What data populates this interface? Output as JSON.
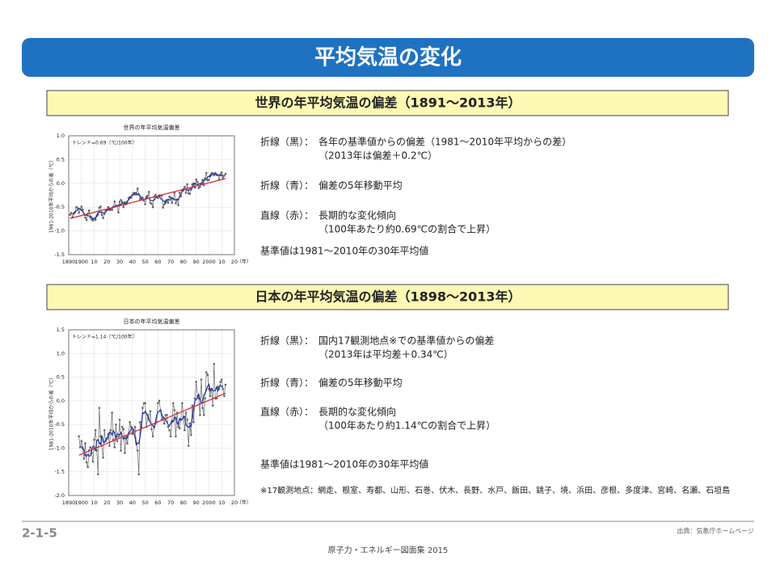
{
  "title": "平均気温の変化",
  "sections": [
    {
      "heading": "世界の年平均気温の偏差（1891～2013年）",
      "notes": [
        {
          "label": "折線（黒）：",
          "lines": [
            "各年の基準値からの偏差（1981～2010年平均からの差）",
            "（2013年は偏差＋0.2℃）"
          ]
        },
        {
          "label": "折線（青）：",
          "lines": [
            "偏差の5年移動平均"
          ]
        },
        {
          "label": "直線（赤）：",
          "lines": [
            "長期的な変化傾向",
            "（100年あたり約0.69℃の割合で上昇）"
          ]
        }
      ],
      "baseline": "基準値は1981～2010年の30年平均値"
    },
    {
      "heading": "日本の年平均気温の偏差（1898～2013年）",
      "notes": [
        {
          "label": "折線（黒）：",
          "lines": [
            "国内17観測地点※での基準値からの偏差",
            "（2013年は平均差＋0.34℃）"
          ]
        },
        {
          "label": "折線（青）：",
          "lines": [
            "偏差の5年移動平均"
          ]
        },
        {
          "label": "直線（赤）：",
          "lines": [
            "長期的な変化傾向",
            "（100年あたり約1.14℃の割合で上昇）"
          ]
        }
      ],
      "baseline": "基準値は1981～2010年の30年平均値",
      "stations": "※17観測地点：網走、根室、寿都、山形、石巻、伏木、長野、水戸、飯田、銚子、境、浜田、彦根、多度津、宮崎、名瀬、石垣島"
    }
  ],
  "chart_data": [
    {
      "type": "line",
      "title": "世界の年平均気温偏差",
      "ylabel": "1981-2010年平均からの差（℃）",
      "xlabel": "（年）",
      "annotation": "トレンド=0.69（℃/100年）",
      "grid": true,
      "xlim": [
        1890,
        2020
      ],
      "xticks": [
        1890,
        1900,
        {
          "value": 1910,
          "label": "10"
        },
        {
          "value": 1920,
          "label": "20"
        },
        {
          "value": 1930,
          "label": "30"
        },
        {
          "value": 1940,
          "label": "40"
        },
        {
          "value": 1950,
          "label": "50"
        },
        {
          "value": 1960,
          "label": "60"
        },
        {
          "value": 1970,
          "label": "70"
        },
        {
          "value": 1980,
          "label": "80"
        },
        {
          "value": 1990,
          "label": "90"
        },
        2000,
        {
          "value": 2010,
          "label": "10"
        },
        {
          "value": 2020,
          "label": "20"
        }
      ],
      "ylim": [
        -1.5,
        1.0
      ],
      "yticks": [
        -1.5,
        {
          "value": -1.0,
          "label": "-1.0"
        },
        -0.5,
        {
          "value": 0,
          "label": "0.0"
        },
        0.5,
        {
          "value": 1.0,
          "label": "1.0"
        }
      ],
      "x": [
        1891,
        1892,
        1893,
        1894,
        1895,
        1896,
        1897,
        1898,
        1899,
        1900,
        1901,
        1902,
        1903,
        1904,
        1905,
        1906,
        1907,
        1908,
        1909,
        1910,
        1911,
        1912,
        1913,
        1914,
        1915,
        1916,
        1917,
        1918,
        1919,
        1920,
        1921,
        1922,
        1923,
        1924,
        1925,
        1926,
        1927,
        1928,
        1929,
        1930,
        1931,
        1932,
        1933,
        1934,
        1935,
        1936,
        1937,
        1938,
        1939,
        1940,
        1941,
        1942,
        1943,
        1944,
        1945,
        1946,
        1947,
        1948,
        1949,
        1950,
        1951,
        1952,
        1953,
        1954,
        1955,
        1956,
        1957,
        1958,
        1959,
        1960,
        1961,
        1962,
        1963,
        1964,
        1965,
        1966,
        1967,
        1968,
        1969,
        1970,
        1971,
        1972,
        1973,
        1974,
        1975,
        1976,
        1977,
        1978,
        1979,
        1980,
        1981,
        1982,
        1983,
        1984,
        1985,
        1986,
        1987,
        1988,
        1989,
        1990,
        1991,
        1992,
        1993,
        1994,
        1995,
        1996,
        1997,
        1998,
        1999,
        2000,
        2001,
        2002,
        2003,
        2004,
        2005,
        2006,
        2007,
        2008,
        2009,
        2010,
        2011,
        2012,
        2013
      ],
      "series": [
        {
          "color": "#666666",
          "markers": true,
          "values": [
            -0.66,
            -0.62,
            -0.71,
            -0.64,
            -0.61,
            -0.5,
            -0.52,
            -0.62,
            -0.54,
            -0.49,
            -0.55,
            -0.65,
            -0.72,
            -0.77,
            -0.64,
            -0.57,
            -0.72,
            -0.76,
            -0.78,
            -0.74,
            -0.77,
            -0.69,
            -0.66,
            -0.51,
            -0.49,
            -0.66,
            -0.73,
            -0.64,
            -0.58,
            -0.56,
            -0.5,
            -0.56,
            -0.55,
            -0.56,
            -0.5,
            -0.38,
            -0.47,
            -0.48,
            -0.61,
            -0.39,
            -0.35,
            -0.39,
            -0.5,
            -0.4,
            -0.44,
            -0.41,
            -0.31,
            -0.29,
            -0.3,
            -0.24,
            -0.2,
            -0.23,
            -0.24,
            -0.11,
            -0.23,
            -0.33,
            -0.31,
            -0.3,
            -0.36,
            -0.44,
            -0.28,
            -0.26,
            -0.18,
            -0.41,
            -0.43,
            -0.5,
            -0.28,
            -0.24,
            -0.28,
            -0.31,
            -0.25,
            -0.26,
            -0.25,
            -0.51,
            -0.44,
            -0.37,
            -0.35,
            -0.41,
            -0.28,
            -0.3,
            -0.41,
            -0.33,
            -0.2,
            -0.42,
            -0.35,
            -0.46,
            -0.2,
            -0.27,
            -0.15,
            -0.12,
            -0.07,
            -0.2,
            -0.02,
            -0.21,
            -0.22,
            -0.13,
            -0.02,
            0.0,
            -0.09,
            0.08,
            0.03,
            -0.1,
            -0.07,
            0.0,
            0.07,
            -0.04,
            0.11,
            0.22,
            0.06,
            0.07,
            0.17,
            0.21,
            0.21,
            0.17,
            0.22,
            0.19,
            0.17,
            0.08,
            0.19,
            0.23,
            0.12,
            0.16,
            0.2
          ]
        },
        {
          "color": "#23399a",
          "values": [
            null,
            null,
            -0.65,
            -0.62,
            -0.6,
            -0.58,
            -0.56,
            -0.53,
            -0.54,
            -0.57,
            -0.59,
            -0.64,
            -0.67,
            -0.67,
            -0.68,
            -0.69,
            -0.69,
            -0.71,
            -0.75,
            -0.75,
            -0.73,
            -0.67,
            -0.62,
            -0.6,
            -0.61,
            -0.61,
            -0.62,
            -0.63,
            -0.6,
            -0.57,
            -0.55,
            -0.55,
            -0.53,
            -0.51,
            -0.49,
            -0.48,
            -0.49,
            -0.47,
            -0.46,
            -0.44,
            -0.45,
            -0.41,
            -0.42,
            -0.43,
            -0.41,
            -0.37,
            -0.35,
            -0.31,
            -0.27,
            -0.25,
            -0.24,
            -0.2,
            -0.2,
            -0.23,
            -0.24,
            -0.26,
            -0.31,
            -0.35,
            -0.34,
            -0.33,
            -0.3,
            -0.31,
            -0.31,
            -0.36,
            -0.36,
            -0.37,
            -0.35,
            -0.32,
            -0.27,
            -0.27,
            -0.27,
            -0.32,
            -0.34,
            -0.37,
            -0.38,
            -0.42,
            -0.37,
            -0.34,
            -0.35,
            -0.35,
            -0.3,
            -0.33,
            -0.34,
            -0.35,
            -0.33,
            -0.34,
            -0.29,
            -0.24,
            -0.16,
            -0.16,
            -0.11,
            -0.12,
            -0.14,
            -0.16,
            -0.12,
            -0.12,
            -0.09,
            -0.03,
            0.0,
            -0.02,
            -0.03,
            -0.01,
            -0.01,
            -0.03,
            0.01,
            0.07,
            0.08,
            0.08,
            0.13,
            0.15,
            0.14,
            0.17,
            0.2,
            0.2,
            0.19,
            0.17,
            0.17,
            0.17,
            0.16,
            0.16,
            0.18,
            null,
            null
          ]
        },
        {
          "color": "#d62e3c",
          "x": [
            1891,
            2013
          ],
          "values": [
            -0.74,
            0.1
          ]
        }
      ]
    },
    {
      "type": "line",
      "title": "日本の年平均気温偏差",
      "ylabel": "1981-2010年平均からの差（℃）",
      "xlabel": "（年）",
      "annotation": "トレンド=1.14（℃/100年）",
      "grid": true,
      "xlim": [
        1890,
        2020
      ],
      "xticks": [
        1890,
        1900,
        {
          "value": 1910,
          "label": "10"
        },
        {
          "value": 1920,
          "label": "20"
        },
        {
          "value": 1930,
          "label": "30"
        },
        {
          "value": 1940,
          "label": "40"
        },
        {
          "value": 1950,
          "label": "50"
        },
        {
          "value": 1960,
          "label": "60"
        },
        {
          "value": 1970,
          "label": "70"
        },
        {
          "value": 1980,
          "label": "80"
        },
        {
          "value": 1990,
          "label": "90"
        },
        2000,
        {
          "value": 2010,
          "label": "10"
        },
        {
          "value": 2020,
          "label": "20"
        }
      ],
      "ylim": [
        -2.0,
        1.5
      ],
      "yticks": [
        {
          "value": -2.0,
          "label": "-2.0"
        },
        -1.5,
        {
          "value": -1.0,
          "label": "-1.0"
        },
        -0.5,
        {
          "value": 0,
          "label": "0.0"
        },
        0.5,
        {
          "value": 1.0,
          "label": "1.0"
        },
        1.5
      ],
      "x": [
        1898,
        1899,
        1900,
        1901,
        1902,
        1903,
        1904,
        1905,
        1906,
        1907,
        1908,
        1909,
        1910,
        1911,
        1912,
        1913,
        1914,
        1915,
        1916,
        1917,
        1918,
        1919,
        1920,
        1921,
        1922,
        1923,
        1924,
        1925,
        1926,
        1927,
        1928,
        1929,
        1930,
        1931,
        1932,
        1933,
        1934,
        1935,
        1936,
        1937,
        1938,
        1939,
        1940,
        1941,
        1942,
        1943,
        1944,
        1945,
        1946,
        1947,
        1948,
        1949,
        1950,
        1951,
        1952,
        1953,
        1954,
        1955,
        1956,
        1957,
        1958,
        1959,
        1960,
        1961,
        1962,
        1963,
        1964,
        1965,
        1966,
        1967,
        1968,
        1969,
        1970,
        1971,
        1972,
        1973,
        1974,
        1975,
        1976,
        1977,
        1978,
        1979,
        1980,
        1981,
        1982,
        1983,
        1984,
        1985,
        1986,
        1987,
        1988,
        1989,
        1990,
        1991,
        1992,
        1993,
        1994,
        1995,
        1996,
        1997,
        1998,
        1999,
        2000,
        2001,
        2002,
        2003,
        2004,
        2005,
        2006,
        2007,
        2008,
        2009,
        2010,
        2011,
        2012,
        2013
      ],
      "series": [
        {
          "color": "#666666",
          "markers": true,
          "values": [
            -0.75,
            -0.98,
            -0.85,
            -1.0,
            -1.22,
            -0.9,
            -1.3,
            -1.4,
            -1.05,
            -0.98,
            -1.1,
            -1.28,
            -0.82,
            -0.62,
            -1.05,
            -1.55,
            -0.15,
            -0.75,
            -0.95,
            -1.2,
            -0.62,
            -0.85,
            -0.8,
            -0.7,
            -0.95,
            -0.62,
            -0.25,
            -0.82,
            -0.98,
            -0.5,
            -0.85,
            -0.75,
            -0.4,
            -1.05,
            -0.55,
            -0.6,
            -1.1,
            -0.75,
            -0.9,
            -0.7,
            -0.45,
            -0.55,
            -0.7,
            -0.62,
            -0.55,
            -0.88,
            -1.05,
            -1.55,
            -0.45,
            -0.55,
            -0.15,
            -0.05,
            -0.05,
            -0.55,
            -0.3,
            -0.4,
            -0.22,
            -0.6,
            -0.75,
            -0.55,
            -0.48,
            -0.45,
            -0.05,
            0.0,
            -0.2,
            -0.4,
            -0.35,
            -0.48,
            -0.3,
            -0.3,
            -0.55,
            -0.62,
            -0.75,
            -0.45,
            -0.05,
            -0.2,
            -0.75,
            -0.25,
            -0.55,
            -0.58,
            -0.4,
            -0.05,
            -0.35,
            -0.62,
            -0.25,
            -0.4,
            -0.95,
            -0.48,
            -0.72,
            -0.1,
            -0.45,
            0.05,
            0.4,
            0.1,
            0.05,
            -0.3,
            0.45,
            -0.15,
            -0.3,
            0.05,
            0.6,
            0.55,
            0.25,
            0.1,
            0.25,
            -0.1,
            0.78,
            0.05,
            0.05,
            0.3,
            0.25,
            0.4,
            0.45,
            0.25,
            0.1,
            0.34
          ]
        },
        {
          "color": "#23399a",
          "values": [
            null,
            null,
            -0.96,
            -0.99,
            -1.05,
            -1.16,
            -1.17,
            -1.13,
            -1.17,
            -1.16,
            -1.05,
            -0.96,
            -0.97,
            -1.06,
            -0.84,
            -0.82,
            -0.89,
            -0.92,
            -0.73,
            -0.87,
            -0.88,
            -0.83,
            -0.78,
            -0.78,
            -0.66,
            -0.67,
            -0.72,
            -0.63,
            -0.68,
            -0.78,
            -0.7,
            -0.71,
            -0.72,
            -0.67,
            -0.74,
            -0.81,
            -0.78,
            -0.81,
            -0.78,
            -0.67,
            -0.66,
            -0.6,
            -0.57,
            -0.66,
            -0.76,
            -0.93,
            -0.9,
            -0.9,
            -0.75,
            -0.55,
            -0.25,
            -0.27,
            -0.22,
            -0.27,
            -0.3,
            -0.41,
            -0.45,
            -0.5,
            -0.52,
            -0.57,
            -0.46,
            -0.31,
            -0.24,
            -0.22,
            -0.2,
            -0.29,
            -0.35,
            -0.37,
            -0.4,
            -0.45,
            -0.5,
            -0.53,
            -0.48,
            -0.41,
            -0.44,
            -0.34,
            -0.36,
            -0.47,
            -0.51,
            -0.37,
            -0.39,
            -0.4,
            -0.33,
            -0.33,
            -0.51,
            -0.54,
            -0.56,
            -0.53,
            -0.54,
            -0.34,
            -0.16,
            0.0,
            0.03,
            0.06,
            0.14,
            0.03,
            -0.05,
            -0.05,
            0.13,
            0.15,
            0.23,
            0.31,
            0.35,
            0.21,
            0.26,
            0.22,
            0.21,
            0.22,
            0.29,
            0.21,
            0.29,
            0.33,
            0.29,
            0.31,
            null,
            null
          ]
        },
        {
          "color": "#d62e3c",
          "x": [
            1898,
            2013
          ],
          "values": [
            -1.15,
            0.16
          ]
        }
      ]
    }
  ],
  "footer": {
    "page": "2-1-5",
    "source": "出典：気象庁ホームページ",
    "publication": "原子力・エネルギー図面集 2015"
  }
}
